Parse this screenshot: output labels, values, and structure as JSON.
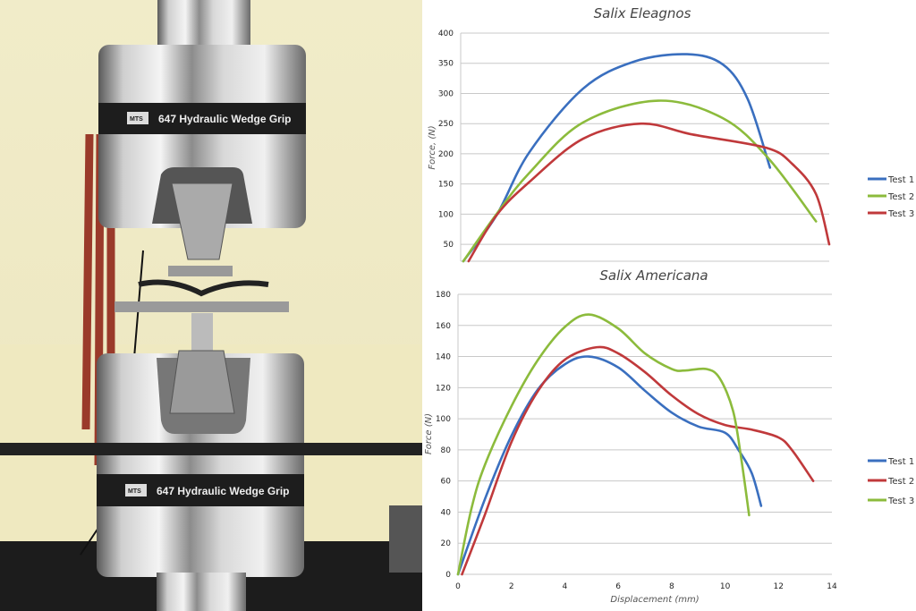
{
  "photo": {
    "grip_label": "647 Hydraulic Wedge Grip",
    "brand": "MTS"
  },
  "chart_data": [
    {
      "type": "line",
      "title": "Salix Eleagnos",
      "xlabel": "",
      "ylabel": "Force, (N)",
      "xlim": [
        0,
        14
      ],
      "ylim": [
        22,
        400
      ],
      "yticks": [
        50,
        100,
        150,
        200,
        250,
        300,
        350,
        400
      ],
      "grid": true,
      "legend": "right",
      "series": [
        {
          "name": "Test 1",
          "color": "#3a6fbf",
          "points": [
            [
              0.1,
              22
            ],
            [
              1.36,
              98
            ],
            [
              2.6,
              202
            ],
            [
              4.65,
              308
            ],
            [
              6.6,
              353
            ],
            [
              8.6,
              365
            ],
            [
              9.96,
              348
            ],
            [
              10.9,
              291
            ],
            [
              11.75,
              177
            ]
          ]
        },
        {
          "name": "Test 2",
          "color": "#8cbb3c",
          "points": [
            [
              0.1,
              22
            ],
            [
              1.36,
              100
            ],
            [
              2.6,
              168
            ],
            [
              4.65,
              252
            ],
            [
              7.5,
              288
            ],
            [
              9.96,
              259
            ],
            [
              11.7,
              192
            ],
            [
              13.5,
              88
            ]
          ]
        },
        {
          "name": "Test 3",
          "color": "#c0393b",
          "points": [
            [
              0.3,
              22
            ],
            [
              1.36,
              98
            ],
            [
              2.6,
              153
            ],
            [
              4.65,
              225
            ],
            [
              6.85,
              250
            ],
            [
              8.8,
              232
            ],
            [
              11.6,
              210
            ],
            [
              12.6,
              183
            ],
            [
              13.5,
              133
            ],
            [
              14,
              50
            ]
          ]
        }
      ]
    },
    {
      "type": "line",
      "title": "Salix Americana",
      "xlabel": "Displacement (mm)",
      "ylabel": "Force (N)",
      "xlim": [
        0,
        14
      ],
      "ylim": [
        0,
        180
      ],
      "xticks": [
        0,
        2,
        4,
        6,
        8,
        10,
        12,
        14
      ],
      "yticks": [
        0,
        20,
        40,
        60,
        80,
        100,
        120,
        140,
        160,
        180
      ],
      "grid": true,
      "legend": "right",
      "series": [
        {
          "name": "Test 1",
          "color": "#3a6fbf",
          "points": [
            [
              0,
              0
            ],
            [
              1,
              48
            ],
            [
              2,
              89
            ],
            [
              3,
              119
            ],
            [
              4,
              135
            ],
            [
              4.9,
              140
            ],
            [
              6,
              133
            ],
            [
              7,
              118
            ],
            [
              8,
              104
            ],
            [
              9,
              95
            ],
            [
              10,
              91
            ],
            [
              10.5,
              80
            ],
            [
              11,
              65
            ],
            [
              11.35,
              44
            ]
          ]
        },
        {
          "name": "Test 2",
          "color": "#c0393b",
          "points": [
            [
              0.15,
              0
            ],
            [
              1,
              38
            ],
            [
              2,
              85
            ],
            [
              3,
              118
            ],
            [
              4,
              138
            ],
            [
              5.2,
              146
            ],
            [
              6,
              142
            ],
            [
              7,
              130
            ],
            [
              8,
              115
            ],
            [
              9,
              103
            ],
            [
              10,
              96
            ],
            [
              11,
              93
            ],
            [
              12,
              88
            ],
            [
              12.5,
              80
            ],
            [
              13.3,
              60
            ]
          ]
        },
        {
          "name": "Test 3",
          "color": "#8cbb3c",
          "points": [
            [
              0,
              0
            ],
            [
              0.5,
              42
            ],
            [
              1,
              70
            ],
            [
              2,
              108
            ],
            [
              3,
              138
            ],
            [
              4,
              159
            ],
            [
              4.9,
              167
            ],
            [
              6,
              158
            ],
            [
              7,
              142
            ],
            [
              8,
              132
            ],
            [
              8.5,
              131
            ],
            [
              9.3,
              132
            ],
            [
              9.8,
              126
            ],
            [
              10.3,
              105
            ],
            [
              10.6,
              75
            ],
            [
              10.9,
              38
            ]
          ]
        }
      ]
    }
  ]
}
